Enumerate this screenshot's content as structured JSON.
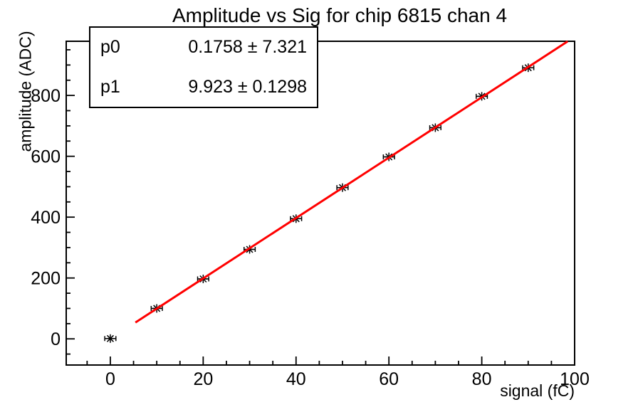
{
  "title": "Amplitude vs Sig for chip 6815 chan 4",
  "stats_box": {
    "rows": [
      {
        "label": "p0",
        "value": "0.1758 ± 7.321"
      },
      {
        "label": "p1",
        "value": "9.923 ± 0.1298"
      }
    ]
  },
  "chart_data": {
    "type": "scatter",
    "title": "Amplitude vs Sig for chip 6815 chan 4",
    "xlabel": "signal (fC)",
    "ylabel": "amplitude (ADC)",
    "xlim": [
      -9.5,
      100
    ],
    "ylim": [
      -86,
      978
    ],
    "grid": false,
    "legend_position": "none",
    "x_major_ticks": [
      0,
      20,
      40,
      60,
      80,
      100
    ],
    "x_minor_step": 5,
    "y_major_ticks": [
      0,
      200,
      400,
      600,
      800
    ],
    "y_minor_step": 50,
    "series": [
      {
        "name": "calibration-points",
        "type": "scatter",
        "marker": "asterisk",
        "color": "#000000",
        "x": [
          0,
          10,
          20,
          30,
          40,
          50,
          60,
          70,
          80,
          90
        ],
        "y": [
          1,
          100,
          197,
          294,
          395,
          497,
          598,
          694,
          797,
          891
        ],
        "xerr": 1.2
      },
      {
        "name": "linear-fit",
        "type": "line",
        "color": "#ff0000",
        "line_width": 3,
        "fit_p0": 0.1758,
        "fit_p1": 9.923,
        "x_start": 5.4,
        "x_end": 98.5
      }
    ]
  }
}
